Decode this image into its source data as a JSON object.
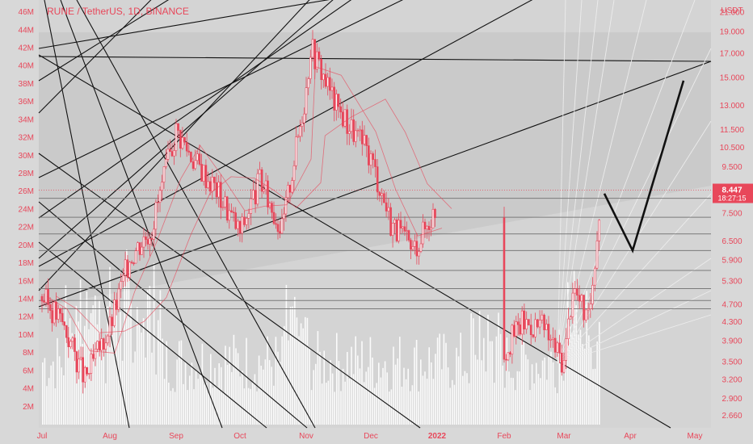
{
  "chart_data": {
    "type": "candlestick",
    "title": "RUNE / TetherUS, 1D, BINANCE",
    "currency": "USDT",
    "last_price": "8.447",
    "countdown": "18:27:15",
    "price_axis": {
      "scale": "log",
      "ylim": [
        2.5,
        22.0
      ],
      "ticks": [
        "21.000",
        "19.000",
        "17.000",
        "15.000",
        "13.000",
        "11.500",
        "10.500",
        "9.500",
        "8.447",
        "7.500",
        "6.500",
        "5.900",
        "5.300",
        "4.700",
        "4.300",
        "3.900",
        "3.500",
        "3.200",
        "2.900",
        "2.660"
      ]
    },
    "volume_axis": {
      "ylim": [
        0,
        47000000
      ],
      "ticks": [
        "46M",
        "44M",
        "42M",
        "40M",
        "38M",
        "36M",
        "34M",
        "32M",
        "30M",
        "28M",
        "26M",
        "24M",
        "22M",
        "20M",
        "18M",
        "16M",
        "14M",
        "12M",
        "10M",
        "8M",
        "6M",
        "4M",
        "2M"
      ]
    },
    "x_ticks": [
      "Jul",
      "Aug",
      "Sep",
      "Oct",
      "Nov",
      "Dec",
      "2022",
      "Feb",
      "Mar",
      "Apr",
      "May"
    ],
    "price_series": [
      {
        "date": "Jul",
        "price": 4.9
      },
      {
        "date": "Jul 10",
        "price": 4.3
      },
      {
        "date": "Jul 20",
        "price": 3.2
      },
      {
        "date": "Aug",
        "price": 4.2
      },
      {
        "date": "Aug 10",
        "price": 6.0
      },
      {
        "date": "Aug 20",
        "price": 7.0
      },
      {
        "date": "Sep",
        "price": 11.5
      },
      {
        "date": "Sep 10",
        "price": 9.8
      },
      {
        "date": "Sep 20",
        "price": 8.5
      },
      {
        "date": "Oct",
        "price": 6.8
      },
      {
        "date": "Oct 10",
        "price": 8.9
      },
      {
        "date": "Oct 20",
        "price": 6.9
      },
      {
        "date": "Nov",
        "price": 14.2
      },
      {
        "date": "Nov 3",
        "price": 17.8
      },
      {
        "date": "Nov 15",
        "price": 13.0
      },
      {
        "date": "Dec",
        "price": 10.0
      },
      {
        "date": "Dec 10",
        "price": 7.2
      },
      {
        "date": "Dec 20",
        "price": 6.2
      },
      {
        "date": "2022",
        "price": 7.8
      },
      {
        "date": "Jan 10",
        "price": 6.5
      },
      {
        "date": "Jan 20",
        "price": 5.9
      },
      {
        "date": "Feb",
        "price": 3.7
      },
      {
        "date": "Feb 10",
        "price": 4.3
      },
      {
        "date": "Feb 20",
        "price": 4.2
      },
      {
        "date": "Mar",
        "price": 3.5
      },
      {
        "date": "Mar 5",
        "price": 5.2
      },
      {
        "date": "Mar 12",
        "price": 4.3
      },
      {
        "date": "Mar 18",
        "price": 8.45
      }
    ],
    "projection": [
      {
        "date": "Mar 18",
        "price": 8.3
      },
      {
        "date": "Apr",
        "price": 6.2
      },
      {
        "date": "May",
        "price": 14.8
      }
    ],
    "horizontal_levels": [
      8.1,
      7.35,
      6.75,
      6.2,
      5.6,
      5.1,
      4.8,
      4.6
    ],
    "colors": {
      "candle": "#e8475a",
      "volume": "#ffffff",
      "projection": "#111111",
      "background": "#d4d4d4",
      "label_bg": "#e8475a"
    }
  }
}
